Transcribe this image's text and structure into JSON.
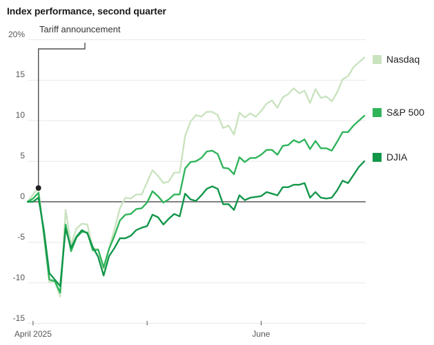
{
  "title": "Index performance, second quarter",
  "annotation": {
    "text": "Tariff announcement",
    "marker_date": "Apr 2",
    "marker_series": "Nasdaq",
    "marker_value": 1.7
  },
  "chart_data": {
    "type": "line",
    "unit": "%",
    "title": "Index performance, second quarter",
    "xlabel": "",
    "ylabel": "",
    "ylim": [
      -15,
      20
    ],
    "grid": true,
    "legend_position": "right",
    "x_dates": [
      "Mar 31",
      "Apr 1",
      "Apr 2",
      "Apr 3",
      "Apr 4",
      "Apr 7",
      "Apr 8",
      "Apr 9",
      "Apr 10",
      "Apr 11",
      "Apr 14",
      "Apr 15",
      "Apr 16",
      "Apr 17",
      "Apr 21",
      "Apr 22",
      "Apr 23",
      "Apr 24",
      "Apr 25",
      "Apr 28",
      "Apr 29",
      "Apr 30",
      "May 1",
      "May 2",
      "May 5",
      "May 6",
      "May 7",
      "May 8",
      "May 9",
      "May 12",
      "May 13",
      "May 14",
      "May 15",
      "May 16",
      "May 19",
      "May 20",
      "May 21",
      "May 22",
      "May 23",
      "May 27",
      "May 28",
      "May 29",
      "May 30",
      "Jun 2",
      "Jun 3",
      "Jun 4",
      "Jun 5",
      "Jun 6",
      "Jun 9",
      "Jun 10",
      "Jun 11",
      "Jun 12",
      "Jun 13",
      "Jun 16",
      "Jun 17",
      "Jun 18",
      "Jun 20",
      "Jun 23",
      "Jun 24",
      "Jun 25",
      "Jun 26",
      "Jun 27",
      "Jun 30"
    ],
    "series": [
      {
        "name": "Nasdaq",
        "color": "#c9e3bf",
        "values": [
          0,
          0.9,
          1.7,
          -4.3,
          -9.9,
          -9.8,
          -11.7,
          -1.0,
          -5.3,
          -3.3,
          -2.7,
          -2.8,
          -5.7,
          -5.9,
          -8.3,
          -5.8,
          -3.4,
          -0.8,
          0.5,
          0.4,
          0.9,
          0.9,
          2.4,
          3.9,
          3.2,
          2.3,
          2.5,
          3.6,
          3.6,
          8.1,
          9.9,
          10.7,
          10.5,
          11.1,
          11.1,
          10.7,
          9.1,
          9.4,
          8.3,
          11.0,
          10.4,
          10.9,
          10.5,
          11.2,
          12.1,
          12.5,
          11.6,
          12.9,
          13.3,
          14.0,
          13.4,
          13.7,
          12.2,
          13.9,
          12.8,
          13.0,
          12.4,
          13.5,
          15.1,
          15.5,
          16.6,
          17.2,
          17.8
        ]
      },
      {
        "name": "S&P 500",
        "color": "#2fb45a",
        "values": [
          0,
          0.4,
          1.1,
          -3.9,
          -9.6,
          -9.8,
          -11.2,
          -2.8,
          -6.1,
          -4.4,
          -3.7,
          -3.8,
          -6.0,
          -5.9,
          -8.1,
          -5.8,
          -4.2,
          -2.3,
          -1.6,
          -1.5,
          -0.9,
          -0.8,
          -0.1,
          1.3,
          0.7,
          -0.1,
          0.3,
          0.9,
          0.9,
          4.1,
          4.9,
          5.0,
          5.4,
          6.2,
          6.3,
          5.9,
          4.2,
          4.1,
          3.4,
          5.5,
          4.9,
          5.4,
          5.4,
          5.8,
          6.4,
          6.4,
          5.8,
          6.9,
          7.0,
          7.6,
          7.3,
          7.7,
          6.5,
          7.5,
          6.6,
          6.6,
          6.3,
          7.4,
          8.6,
          8.6,
          9.4,
          10.0,
          10.6
        ]
      },
      {
        "name": "DJIA",
        "color": "#12964a",
        "values": [
          0,
          0.0,
          0.5,
          -3.5,
          -8.8,
          -9.6,
          -10.4,
          -3.3,
          -5.7,
          -4.3,
          -3.5,
          -3.9,
          -5.6,
          -6.8,
          -9.1,
          -6.7,
          -5.7,
          -4.5,
          -4.5,
          -4.2,
          -3.5,
          -3.2,
          -3.0,
          -1.6,
          -1.9,
          -2.8,
          -2.1,
          -1.5,
          -1.8,
          1.0,
          0.3,
          0.1,
          0.8,
          1.6,
          1.9,
          1.6,
          -0.3,
          -0.3,
          -1.0,
          0.8,
          0.2,
          0.5,
          0.6,
          0.7,
          1.2,
          1.0,
          0.8,
          1.8,
          1.8,
          2.1,
          2.1,
          2.3,
          0.5,
          1.2,
          0.5,
          0.4,
          0.5,
          1.4,
          2.6,
          2.3,
          3.3,
          4.3,
          5.0
        ]
      }
    ],
    "y_ticks": [
      {
        "value": 20,
        "label": "20%"
      },
      {
        "value": 15,
        "label": "15"
      },
      {
        "value": 10,
        "label": "10"
      },
      {
        "value": 5,
        "label": "5"
      },
      {
        "value": 0,
        "label": "0"
      },
      {
        "value": -5,
        "label": "-5"
      },
      {
        "value": -10,
        "label": "-10"
      },
      {
        "value": -15,
        "label": "-15"
      }
    ],
    "x_ticks": [
      {
        "label": "April 2025",
        "date_index": 1
      },
      {
        "label": "",
        "date_index": 22
      },
      {
        "label": "June",
        "date_index": 43
      }
    ],
    "colors": {
      "zero_line": "#808080",
      "gridline": "#e8e8e8",
      "annotation_line": "#4d4d4d",
      "annotation_dot": "#222222"
    }
  }
}
